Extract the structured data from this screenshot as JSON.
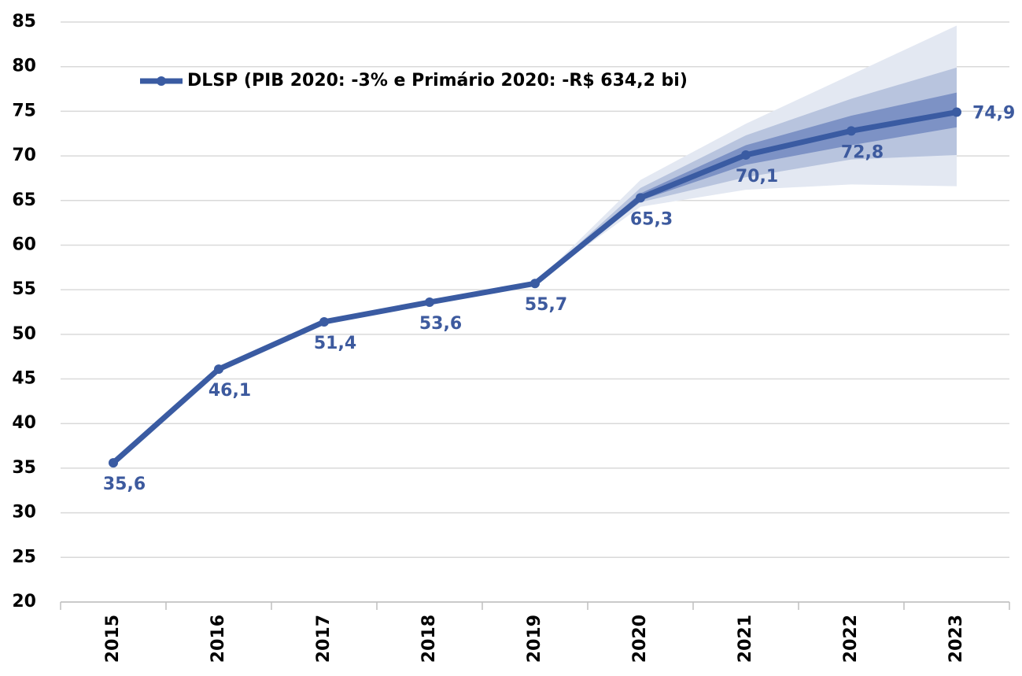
{
  "chart_data": {
    "type": "line",
    "categories": [
      "2015",
      "2016",
      "2017",
      "2018",
      "2019",
      "2020",
      "2021",
      "2022",
      "2023"
    ],
    "series": [
      {
        "name": "DLSP (PIB 2020: -3% e Primário 2020: -R$ 634,2 bi)",
        "color": "#3a5ba2",
        "values": [
          35.6,
          46.1,
          51.4,
          53.6,
          55.7,
          65.3,
          70.1,
          72.8,
          74.9
        ],
        "value_labels": [
          "35,6",
          "46,1",
          "51,4",
          "53,6",
          "55,7",
          "65,3",
          "70,1",
          "72,8",
          "74,9"
        ]
      }
    ],
    "bands": [
      {
        "color": "#e3e8f2",
        "upper": [
          null,
          null,
          null,
          null,
          55.7,
          67.3,
          73.6,
          79.1,
          84.6
        ],
        "lower": [
          null,
          null,
          null,
          null,
          55.7,
          64.3,
          66.2,
          66.8,
          66.6
        ]
      },
      {
        "color": "#b8c4de",
        "upper": [
          null,
          null,
          null,
          null,
          55.7,
          66.4,
          72.3,
          76.4,
          79.9
        ],
        "lower": [
          null,
          null,
          null,
          null,
          55.7,
          64.8,
          67.6,
          69.6,
          70.1
        ]
      },
      {
        "color": "#7d92c5",
        "upper": [
          null,
          null,
          null,
          null,
          55.7,
          65.8,
          71.2,
          74.5,
          77.1
        ],
        "lower": [
          null,
          null,
          null,
          null,
          55.7,
          65.0,
          69.0,
          71.2,
          73.2
        ]
      }
    ],
    "ylim": [
      20,
      85
    ],
    "yticks": [
      20,
      25,
      30,
      35,
      40,
      45,
      50,
      55,
      60,
      65,
      70,
      75,
      80,
      85
    ],
    "grid": true,
    "legend": "top-left"
  }
}
